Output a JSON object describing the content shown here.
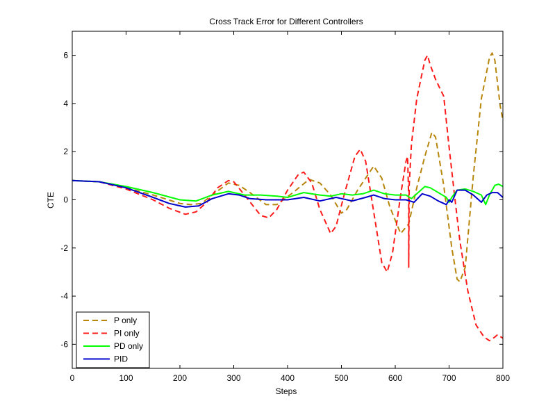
{
  "chart_data": {
    "type": "line",
    "title": "Cross Track Error for Different Controllers",
    "xlabel": "Steps",
    "ylabel": "CTE",
    "xlim": [
      0,
      800
    ],
    "ylim": [
      -7,
      7
    ],
    "xticks": [
      0,
      100,
      200,
      300,
      400,
      500,
      600,
      700,
      800
    ],
    "yticks": [
      -6,
      -4,
      -2,
      0,
      2,
      4,
      6
    ],
    "xtick_labels": [
      "0",
      "100",
      "200",
      "300",
      "400",
      "500",
      "600",
      "700",
      "800"
    ],
    "ytick_labels": [
      "-6",
      "-4",
      "-2",
      "0",
      "2",
      "4",
      "6"
    ],
    "grid": false,
    "legend_position": "bottom-left",
    "series": [
      {
        "name": "P only",
        "color": "#b8860b",
        "dash": "dashed",
        "points": [
          [
            0,
            0.8
          ],
          [
            50,
            0.75
          ],
          [
            100,
            0.5
          ],
          [
            150,
            0.2
          ],
          [
            200,
            -0.15
          ],
          [
            220,
            -0.2
          ],
          [
            240,
            -0.15
          ],
          [
            260,
            0.2
          ],
          [
            290,
            0.7
          ],
          [
            310,
            0.6
          ],
          [
            330,
            0.3
          ],
          [
            360,
            -0.2
          ],
          [
            380,
            -0.2
          ],
          [
            410,
            0.3
          ],
          [
            440,
            0.85
          ],
          [
            460,
            0.7
          ],
          [
            480,
            0.2
          ],
          [
            500,
            -0.55
          ],
          [
            510,
            -0.4
          ],
          [
            530,
            0.4
          ],
          [
            560,
            1.4
          ],
          [
            575,
            0.9
          ],
          [
            590,
            -0.3
          ],
          [
            610,
            -1.4
          ],
          [
            625,
            -1.0
          ],
          [
            640,
            0.5
          ],
          [
            655,
            1.8
          ],
          [
            668,
            2.8
          ],
          [
            675,
            2.6
          ],
          [
            690,
            0.6
          ],
          [
            705,
            -2.0
          ],
          [
            715,
            -3.3
          ],
          [
            720,
            -3.4
          ],
          [
            730,
            -2.8
          ],
          [
            745,
            1.0
          ],
          [
            760,
            4.2
          ],
          [
            775,
            5.9
          ],
          [
            780,
            6.1
          ],
          [
            785,
            5.8
          ],
          [
            795,
            3.9
          ],
          [
            800,
            3.3
          ]
        ]
      },
      {
        "name": "PI only",
        "color": "#ff1a1a",
        "dash": "dashed",
        "points": [
          [
            0,
            0.8
          ],
          [
            50,
            0.75
          ],
          [
            100,
            0.45
          ],
          [
            150,
            0.0
          ],
          [
            180,
            -0.35
          ],
          [
            210,
            -0.6
          ],
          [
            230,
            -0.5
          ],
          [
            250,
            -0.1
          ],
          [
            270,
            0.5
          ],
          [
            290,
            0.8
          ],
          [
            300,
            0.75
          ],
          [
            320,
            0.2
          ],
          [
            350,
            -0.65
          ],
          [
            365,
            -0.75
          ],
          [
            380,
            -0.4
          ],
          [
            400,
            0.4
          ],
          [
            420,
            1.05
          ],
          [
            430,
            1.15
          ],
          [
            445,
            0.7
          ],
          [
            460,
            -0.4
          ],
          [
            480,
            -1.4
          ],
          [
            490,
            -1.1
          ],
          [
            505,
            0.2
          ],
          [
            525,
            1.8
          ],
          [
            535,
            2.1
          ],
          [
            545,
            1.6
          ],
          [
            560,
            -0.5
          ],
          [
            575,
            -2.6
          ],
          [
            585,
            -3.0
          ],
          [
            595,
            -2.2
          ],
          [
            610,
            0.2
          ],
          [
            620,
            1.6
          ],
          [
            623,
            1.8
          ],
          [
            625,
            0.0
          ],
          [
            625,
            -2.8
          ],
          [
            626,
            0.6
          ],
          [
            630,
            2.3
          ],
          [
            640,
            4.2
          ],
          [
            655,
            5.8
          ],
          [
            660,
            6.0
          ],
          [
            665,
            5.6
          ],
          [
            675,
            5.0
          ],
          [
            690,
            4.3
          ],
          [
            700,
            2.2
          ],
          [
            710,
            0.2
          ],
          [
            720,
            -1.7
          ],
          [
            735,
            -3.8
          ],
          [
            750,
            -5.2
          ],
          [
            765,
            -5.7
          ],
          [
            775,
            -5.85
          ],
          [
            785,
            -5.7
          ],
          [
            790,
            -5.6
          ],
          [
            800,
            -5.75
          ]
        ]
      },
      {
        "name": "PD only",
        "color": "#00ff00",
        "dash": "solid",
        "points": [
          [
            0,
            0.8
          ],
          [
            50,
            0.75
          ],
          [
            100,
            0.55
          ],
          [
            150,
            0.3
          ],
          [
            200,
            0.0
          ],
          [
            230,
            -0.05
          ],
          [
            260,
            0.2
          ],
          [
            290,
            0.35
          ],
          [
            320,
            0.2
          ],
          [
            350,
            0.2
          ],
          [
            380,
            0.15
          ],
          [
            400,
            0.1
          ],
          [
            430,
            0.3
          ],
          [
            460,
            0.2
          ],
          [
            480,
            0.15
          ],
          [
            500,
            0.25
          ],
          [
            520,
            0.2
          ],
          [
            540,
            0.25
          ],
          [
            560,
            0.4
          ],
          [
            580,
            0.25
          ],
          [
            600,
            0.2
          ],
          [
            620,
            0.2
          ],
          [
            630,
            0.05
          ],
          [
            645,
            0.35
          ],
          [
            655,
            0.55
          ],
          [
            665,
            0.5
          ],
          [
            680,
            0.3
          ],
          [
            695,
            0.1
          ],
          [
            700,
            -0.1
          ],
          [
            705,
            0.1
          ],
          [
            715,
            0.4
          ],
          [
            730,
            0.45
          ],
          [
            745,
            0.35
          ],
          [
            760,
            0.2
          ],
          [
            768,
            -0.2
          ],
          [
            775,
            0.2
          ],
          [
            785,
            0.6
          ],
          [
            792,
            0.65
          ],
          [
            800,
            0.55
          ]
        ]
      },
      {
        "name": "PID",
        "color": "#0000cc",
        "dash": "solid",
        "points": [
          [
            0,
            0.8
          ],
          [
            50,
            0.75
          ],
          [
            100,
            0.5
          ],
          [
            150,
            0.1
          ],
          [
            180,
            -0.15
          ],
          [
            210,
            -0.3
          ],
          [
            235,
            -0.25
          ],
          [
            260,
            0.05
          ],
          [
            290,
            0.25
          ],
          [
            310,
            0.2
          ],
          [
            330,
            0.05
          ],
          [
            360,
            0.0
          ],
          [
            380,
            0.0
          ],
          [
            400,
            0.0
          ],
          [
            430,
            0.1
          ],
          [
            460,
            -0.05
          ],
          [
            490,
            0.1
          ],
          [
            520,
            -0.05
          ],
          [
            545,
            0.1
          ],
          [
            560,
            0.2
          ],
          [
            580,
            0.05
          ],
          [
            600,
            0.0
          ],
          [
            620,
            0.0
          ],
          [
            635,
            -0.1
          ],
          [
            650,
            0.25
          ],
          [
            665,
            0.15
          ],
          [
            680,
            -0.05
          ],
          [
            695,
            -0.2
          ],
          [
            700,
            0.0
          ],
          [
            705,
            -0.1
          ],
          [
            715,
            0.4
          ],
          [
            730,
            0.4
          ],
          [
            745,
            0.2
          ],
          [
            760,
            -0.1
          ],
          [
            770,
            0.2
          ],
          [
            780,
            0.3
          ],
          [
            790,
            0.3
          ],
          [
            800,
            0.1
          ]
        ]
      }
    ]
  }
}
